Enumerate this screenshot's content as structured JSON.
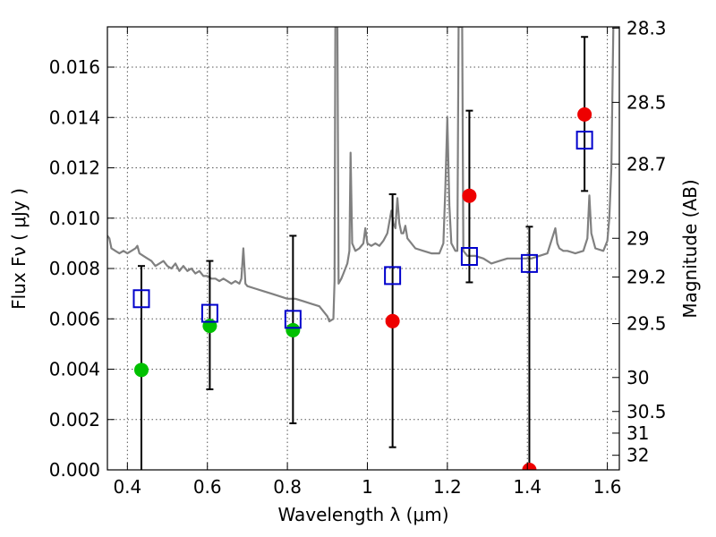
{
  "chart_data": {
    "type": "scatter",
    "xlabel": "Wavelength  λ (μm)",
    "ylabel": "Flux  Fν  ( μJy )",
    "ylabel_right": "Magnitude (AB)",
    "xlim": [
      0.35,
      1.63
    ],
    "ylim": [
      0.0,
      0.0176
    ],
    "grid": true,
    "x_ticks": [
      0.4,
      0.6,
      0.8,
      1.0,
      1.2,
      1.4,
      1.6
    ],
    "x_tick_labels": [
      "0.4",
      "0.6",
      "0.8",
      "1",
      "1.2",
      "1.4",
      "1.6"
    ],
    "y_ticks": [
      0.0,
      0.002,
      0.004,
      0.006,
      0.008,
      0.01,
      0.012,
      0.014,
      0.016
    ],
    "y_tick_labels": [
      "0.000",
      "0.002",
      "0.004",
      "0.006",
      "0.008",
      "0.010",
      "0.012",
      "0.014",
      "0.016"
    ],
    "right_ticks": [
      {
        "label": "28.3",
        "flux": 0.01755
      },
      {
        "label": "28.5",
        "flux": 0.0146
      },
      {
        "label": "28.7",
        "flux": 0.01215
      },
      {
        "label": "29",
        "flux": 0.0092
      },
      {
        "label": "29.2",
        "flux": 0.00766
      },
      {
        "label": "29.5",
        "flux": 0.00581
      },
      {
        "label": "30",
        "flux": 0.00367
      },
      {
        "label": "30.5",
        "flux": 0.00232
      },
      {
        "label": "31",
        "flux": 0.00146
      },
      {
        "label": "32",
        "flux": 0.00058
      }
    ],
    "colors": {
      "sed": "#808080",
      "model": "#0000cc",
      "detected": "#00c000",
      "other": "#ee0000",
      "errorbar": "#000000",
      "grid": "#555555"
    },
    "series": [
      {
        "marker": "circle",
        "color": "#00c000",
        "points": [
          {
            "x": 0.435,
            "y": 0.00397
          },
          {
            "x": 0.606,
            "y": 0.00572
          },
          {
            "x": 0.814,
            "y": 0.00555
          }
        ]
      },
      {
        "marker": "circle",
        "color": "#ee0000",
        "points": [
          {
            "x": 1.063,
            "y": 0.00591
          },
          {
            "x": 1.255,
            "y": 0.01089
          },
          {
            "x": 1.405,
            "y": 0.0
          },
          {
            "x": 1.543,
            "y": 0.01412
          }
        ]
      },
      {
        "marker": "open-square",
        "color": "#0000cc",
        "points": [
          {
            "x": 0.435,
            "y": 0.0068
          },
          {
            "x": 0.606,
            "y": 0.00622
          },
          {
            "x": 0.814,
            "y": 0.00598
          },
          {
            "x": 1.063,
            "y": 0.00772
          },
          {
            "x": 1.255,
            "y": 0.00848
          },
          {
            "x": 1.405,
            "y": 0.0082
          },
          {
            "x": 1.543,
            "y": 0.0131
          }
        ]
      }
    ],
    "error_bars": [
      {
        "x": 0.435,
        "low": 0.0,
        "high": 0.0081
      },
      {
        "x": 0.606,
        "low": 0.0032,
        "high": 0.0083
      },
      {
        "x": 0.814,
        "low": 0.00185,
        "high": 0.0093
      },
      {
        "x": 1.063,
        "low": 0.0009,
        "high": 0.01095
      },
      {
        "x": 1.255,
        "low": 0.00745,
        "high": 0.01427
      },
      {
        "x": 1.405,
        "low": 0.0,
        "high": 0.00966
      },
      {
        "x": 1.543,
        "low": 0.01108,
        "high": 0.0172
      }
    ],
    "sed_line": [
      [
        0.35,
        0.0093
      ],
      [
        0.355,
        0.0092
      ],
      [
        0.36,
        0.0088
      ],
      [
        0.37,
        0.0087
      ],
      [
        0.38,
        0.0086
      ],
      [
        0.39,
        0.0087
      ],
      [
        0.4,
        0.0086
      ],
      [
        0.41,
        0.0087
      ],
      [
        0.42,
        0.0088
      ],
      [
        0.425,
        0.0089
      ],
      [
        0.43,
        0.0086
      ],
      [
        0.44,
        0.0085
      ],
      [
        0.45,
        0.0084
      ],
      [
        0.46,
        0.0083
      ],
      [
        0.47,
        0.0081
      ],
      [
        0.48,
        0.0082
      ],
      [
        0.49,
        0.0083
      ],
      [
        0.5,
        0.0081
      ],
      [
        0.51,
        0.008
      ],
      [
        0.52,
        0.0082
      ],
      [
        0.53,
        0.0079
      ],
      [
        0.54,
        0.0081
      ],
      [
        0.55,
        0.0079
      ],
      [
        0.56,
        0.008
      ],
      [
        0.57,
        0.0078
      ],
      [
        0.58,
        0.0079
      ],
      [
        0.59,
        0.0077
      ],
      [
        0.6,
        0.0077
      ],
      [
        0.61,
        0.0076
      ],
      [
        0.62,
        0.0076
      ],
      [
        0.63,
        0.0075
      ],
      [
        0.64,
        0.0076
      ],
      [
        0.65,
        0.0075
      ],
      [
        0.66,
        0.0074
      ],
      [
        0.67,
        0.0075
      ],
      [
        0.68,
        0.0074
      ],
      [
        0.685,
        0.0076
      ],
      [
        0.69,
        0.0088
      ],
      [
        0.695,
        0.0074
      ],
      [
        0.7,
        0.0073
      ],
      [
        0.72,
        0.0072
      ],
      [
        0.74,
        0.0071
      ],
      [
        0.76,
        0.007
      ],
      [
        0.78,
        0.0069
      ],
      [
        0.8,
        0.0068
      ],
      [
        0.82,
        0.0068
      ],
      [
        0.84,
        0.0067
      ],
      [
        0.86,
        0.0066
      ],
      [
        0.88,
        0.0065
      ],
      [
        0.9,
        0.0061
      ],
      [
        0.905,
        0.0059
      ],
      [
        0.915,
        0.006
      ],
      [
        0.918,
        0.0075
      ],
      [
        0.92,
        0.0176
      ],
      [
        0.925,
        0.0176
      ],
      [
        0.928,
        0.0074
      ],
      [
        0.935,
        0.0076
      ],
      [
        0.94,
        0.0078
      ],
      [
        0.95,
        0.0082
      ],
      [
        0.955,
        0.0087
      ],
      [
        0.958,
        0.0126
      ],
      [
        0.962,
        0.009
      ],
      [
        0.97,
        0.0087
      ],
      [
        0.98,
        0.0088
      ],
      [
        0.99,
        0.009
      ],
      [
        0.995,
        0.0096
      ],
      [
        1.0,
        0.009
      ],
      [
        1.01,
        0.0089
      ],
      [
        1.02,
        0.009
      ],
      [
        1.03,
        0.0089
      ],
      [
        1.04,
        0.0091
      ],
      [
        1.05,
        0.0094
      ],
      [
        1.06,
        0.0103
      ],
      [
        1.065,
        0.0098
      ],
      [
        1.07,
        0.0096
      ],
      [
        1.075,
        0.0108
      ],
      [
        1.08,
        0.0098
      ],
      [
        1.085,
        0.0094
      ],
      [
        1.09,
        0.0094
      ],
      [
        1.095,
        0.0097
      ],
      [
        1.1,
        0.0092
      ],
      [
        1.12,
        0.0088
      ],
      [
        1.14,
        0.0087
      ],
      [
        1.16,
        0.0086
      ],
      [
        1.18,
        0.0086
      ],
      [
        1.19,
        0.009
      ],
      [
        1.195,
        0.0112
      ],
      [
        1.2,
        0.014
      ],
      [
        1.205,
        0.0105
      ],
      [
        1.21,
        0.009
      ],
      [
        1.22,
        0.0087
      ],
      [
        1.225,
        0.0087
      ],
      [
        1.228,
        0.0176
      ],
      [
        1.237,
        0.0176
      ],
      [
        1.24,
        0.0087
      ],
      [
        1.25,
        0.0085
      ],
      [
        1.27,
        0.0085
      ],
      [
        1.29,
        0.0084
      ],
      [
        1.3,
        0.0083
      ],
      [
        1.31,
        0.0082
      ],
      [
        1.33,
        0.0083
      ],
      [
        1.35,
        0.0084
      ],
      [
        1.37,
        0.0084
      ],
      [
        1.39,
        0.0084
      ],
      [
        1.41,
        0.0084
      ],
      [
        1.43,
        0.0085
      ],
      [
        1.45,
        0.0086
      ],
      [
        1.47,
        0.0096
      ],
      [
        1.475,
        0.009
      ],
      [
        1.48,
        0.0088
      ],
      [
        1.49,
        0.0087
      ],
      [
        1.5,
        0.0087
      ],
      [
        1.52,
        0.0086
      ],
      [
        1.54,
        0.0087
      ],
      [
        1.55,
        0.0092
      ],
      [
        1.555,
        0.0109
      ],
      [
        1.56,
        0.0094
      ],
      [
        1.57,
        0.0088
      ],
      [
        1.59,
        0.0087
      ],
      [
        1.6,
        0.0091
      ],
      [
        1.605,
        0.01
      ],
      [
        1.61,
        0.012
      ],
      [
        1.615,
        0.0176
      ],
      [
        1.63,
        0.0176
      ]
    ]
  }
}
